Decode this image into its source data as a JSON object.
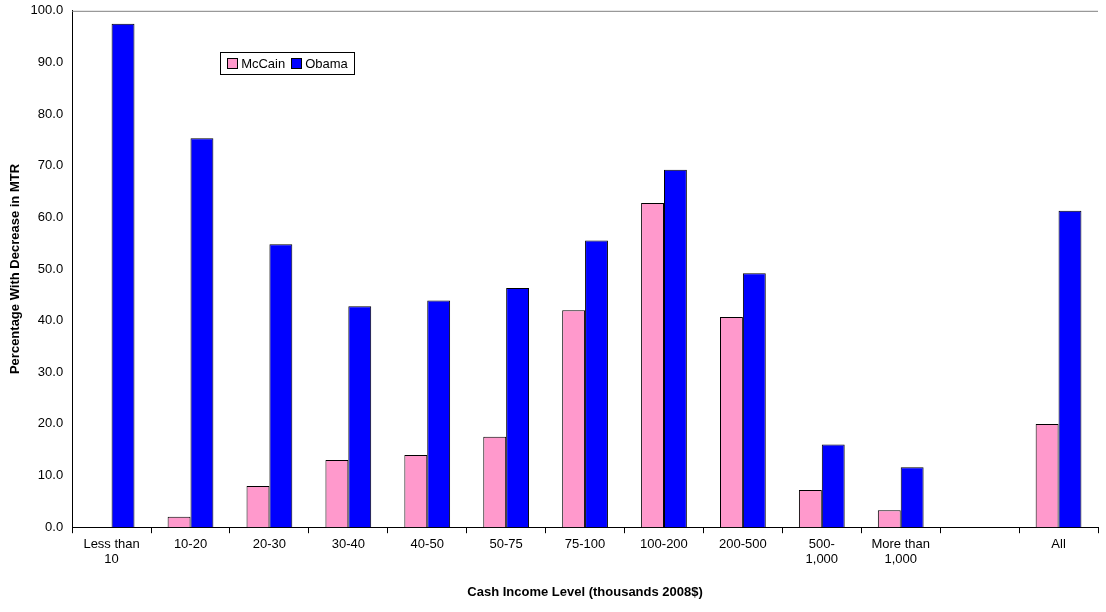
{
  "chart_data": {
    "type": "bar",
    "xlabel": "Cash Income Level (thousands 2008$)",
    "ylabel": "Percentage With Decrease in MTR",
    "categories": [
      "Less than 10",
      "10-20",
      "20-30",
      "30-40",
      "40-50",
      "50-75",
      "75-100",
      "100-200",
      "200-500",
      "500-1,000",
      "More than 1,000",
      null,
      "All"
    ],
    "series": [
      {
        "name": "McCain",
        "color": "#ff99cc",
        "values": [
          0,
          2.0,
          8.0,
          13.0,
          14.0,
          17.5,
          42.0,
          62.8,
          40.7,
          7.2,
          3.3,
          null,
          20.0
        ]
      },
      {
        "name": "Obama",
        "color": "#0000ff",
        "values": [
          97.5,
          75.3,
          54.8,
          42.8,
          43.9,
          46.3,
          55.5,
          69.2,
          49.2,
          16.0,
          11.6,
          null,
          61.3
        ]
      }
    ],
    "ylim": [
      0,
      100
    ],
    "yticks": [
      {
        "value": 0,
        "label": "0.0"
      },
      {
        "value": 10,
        "label": "10.0"
      },
      {
        "value": 20,
        "label": "20.0"
      },
      {
        "value": 30,
        "label": "30.0"
      },
      {
        "value": 40,
        "label": "40.0"
      },
      {
        "value": 50,
        "label": "50.0"
      },
      {
        "value": 60,
        "label": "60.0"
      },
      {
        "value": 70,
        "label": "70.0"
      },
      {
        "value": 80,
        "label": "80.0"
      },
      {
        "value": 90,
        "label": "90.0"
      },
      {
        "value": 100,
        "label": "100.0"
      }
    ],
    "grid": false,
    "legend": "top left"
  }
}
